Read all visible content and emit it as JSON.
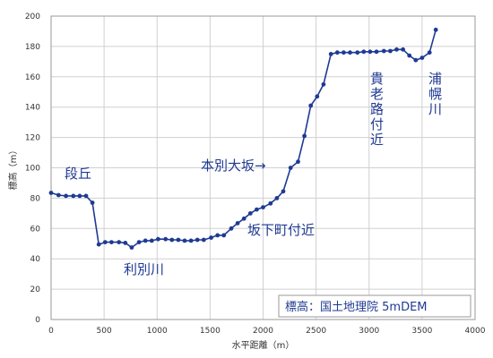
{
  "chart_data": {
    "type": "line",
    "xlabel": "水平距離（m）",
    "ylabel": "標高（m）",
    "xlim": [
      0,
      4000
    ],
    "ylim": [
      0,
      200
    ],
    "grid": true,
    "x_ticks": [
      0,
      500,
      1000,
      1500,
      2000,
      2500,
      3000,
      3500,
      4000
    ],
    "y_ticks": [
      0,
      20,
      40,
      60,
      80,
      100,
      120,
      140,
      160,
      180,
      200
    ],
    "color": "#1f3a93",
    "series": [
      {
        "points": [
          [
            0,
            83.5
          ],
          [
            70,
            82
          ],
          [
            140,
            81.5
          ],
          [
            210,
            81.5
          ],
          [
            270,
            81.5
          ],
          [
            330,
            81.5
          ],
          [
            390,
            77
          ],
          [
            450,
            49.5
          ],
          [
            510,
            51
          ],
          [
            570,
            51
          ],
          [
            640,
            51
          ],
          [
            700,
            50.5
          ],
          [
            760,
            47.5
          ],
          [
            830,
            51
          ],
          [
            890,
            52
          ],
          [
            950,
            52
          ],
          [
            1010,
            53
          ],
          [
            1080,
            53
          ],
          [
            1140,
            52.5
          ],
          [
            1200,
            52.5
          ],
          [
            1260,
            52
          ],
          [
            1320,
            52
          ],
          [
            1380,
            52.5
          ],
          [
            1440,
            52.5
          ],
          [
            1510,
            54
          ],
          [
            1570,
            55.5
          ],
          [
            1630,
            55.5
          ],
          [
            1700,
            60
          ],
          [
            1760,
            63.5
          ],
          [
            1820,
            66.5
          ],
          [
            1880,
            70
          ],
          [
            1940,
            72.5
          ],
          [
            2000,
            74
          ],
          [
            2070,
            76.5
          ],
          [
            2130,
            80
          ],
          [
            2190,
            84.5
          ],
          [
            2260,
            100
          ],
          [
            2330,
            104
          ],
          [
            2390,
            121
          ],
          [
            2450,
            141
          ],
          [
            2510,
            147
          ],
          [
            2570,
            155
          ],
          [
            2640,
            175
          ],
          [
            2700,
            176
          ],
          [
            2760,
            176
          ],
          [
            2820,
            176
          ],
          [
            2890,
            176
          ],
          [
            2950,
            176.5
          ],
          [
            3010,
            176.5
          ],
          [
            3070,
            176.5
          ],
          [
            3140,
            177
          ],
          [
            3200,
            177
          ],
          [
            3260,
            178
          ],
          [
            3320,
            178
          ],
          [
            3380,
            174
          ],
          [
            3440,
            171
          ],
          [
            3500,
            172.5
          ],
          [
            3570,
            176
          ],
          [
            3630,
            191
          ]
        ]
      }
    ],
    "annotations": {
      "dankyu": "段丘",
      "tonebetsu": "利別川",
      "sakashita": "坂下町付近",
      "honbetsu": "本別大坂→",
      "kiro": "貴老路付近",
      "urahoro": "浦幌川"
    },
    "credit": "標高：国土地理院 5mDEM"
  }
}
